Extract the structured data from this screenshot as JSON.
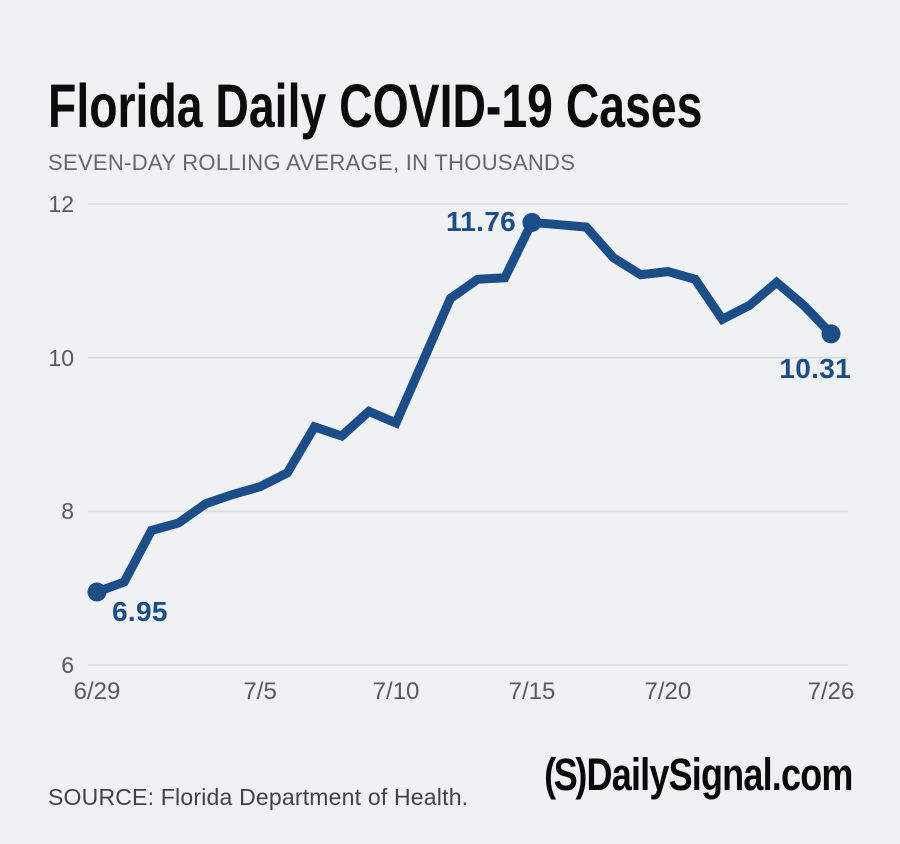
{
  "header": {
    "title": "Florida Daily COVID-19 Cases",
    "subtitle": "SEVEN-DAY ROLLING AVERAGE, IN THOUSANDS"
  },
  "chart_data": {
    "type": "line",
    "series_name": "Seven-day rolling average, in thousands",
    "x": [
      "6/29",
      "6/30",
      "7/1",
      "7/2",
      "7/3",
      "7/4",
      "7/5",
      "7/6",
      "7/7",
      "7/8",
      "7/9",
      "7/10",
      "7/11",
      "7/12",
      "7/13",
      "7/14",
      "7/15",
      "7/16",
      "7/17",
      "7/18",
      "7/19",
      "7/20",
      "7/21",
      "7/22",
      "7/23",
      "7/24",
      "7/25",
      "7/26"
    ],
    "values": [
      6.95,
      7.08,
      7.75,
      7.85,
      8.1,
      8.22,
      8.32,
      8.5,
      9.1,
      8.98,
      9.3,
      9.15,
      9.96,
      10.77,
      11.02,
      11.04,
      11.76,
      11.73,
      11.7,
      11.3,
      11.08,
      11.12,
      11.02,
      10.5,
      10.68,
      10.98,
      10.68,
      10.31
    ],
    "title": "Florida Daily COVID-19 Cases",
    "xlabel": "",
    "ylabel": "",
    "ylim": [
      6,
      12
    ],
    "y_ticks": [
      12,
      10,
      8,
      6
    ],
    "x_ticks": [
      {
        "label": "6/29",
        "index": 0
      },
      {
        "label": "7/5",
        "index": 6
      },
      {
        "label": "7/10",
        "index": 11
      },
      {
        "label": "7/15",
        "index": 16
      },
      {
        "label": "7/20",
        "index": 21
      },
      {
        "label": "7/26",
        "index": 27
      }
    ],
    "grid": "horizontal",
    "legend": "none",
    "annotations": [
      {
        "index": 0,
        "label": "6.95",
        "placement": "below-right"
      },
      {
        "index": 16,
        "label": "11.76",
        "placement": "left"
      },
      {
        "index": 27,
        "label": "10.31",
        "placement": "below-left"
      }
    ],
    "colors": {
      "line": "#1b4d88",
      "grid": "#dadcde",
      "tick_text": "#58595c",
      "background": "#f0f1f3"
    }
  },
  "footer": {
    "source": "SOURCE: Florida Department of Health.",
    "logo_mark": "(S)",
    "logo_text": "DailySignal.com"
  }
}
